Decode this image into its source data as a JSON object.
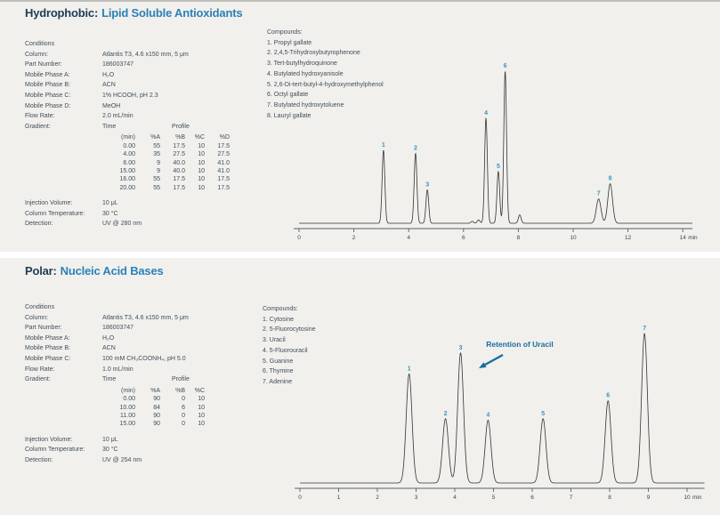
{
  "page": {
    "background": "#f1f0ed",
    "accent_navy": "#1e3c55",
    "accent_blue": "#2b81b8",
    "peak_label_color": "#3995c0",
    "annotation_color": "#176d9e"
  },
  "sections": [
    {
      "title_prefix": "Hydrophobic:",
      "title_main": "Lipid Soluble Antioxidants",
      "conditions_header": "Conditions",
      "conditions": [
        {
          "label": "Column:",
          "value": "Atlantis T3, 4.6 x150 mm, 5 μm"
        },
        {
          "label": "Part Number:",
          "value": "186003747"
        },
        {
          "label": "Mobile Phase A:",
          "value": "H₂O"
        },
        {
          "label": "Mobile Phase B:",
          "value": "ACN"
        },
        {
          "label": "Mobile Phase C:",
          "value": "1% HCOOH, pH 2.3"
        },
        {
          "label": "Mobile Phase D:",
          "value": "MeOH"
        },
        {
          "label": "Flow Rate:",
          "value": "2.0 mL/min"
        }
      ],
      "gradient_label": "Gradient:",
      "time_header": "Time",
      "profile_header": "Profile",
      "gradient_columns": [
        "(min)",
        "%A",
        "%B",
        "%C",
        "%D"
      ],
      "gradient_rows": [
        [
          "0.00",
          "55",
          "17.5",
          "10",
          "17.5"
        ],
        [
          "4.00",
          "35",
          "27.5",
          "10",
          "27.5"
        ],
        [
          "6.00",
          "9",
          "40.0",
          "10",
          "41.0"
        ],
        [
          "15.00",
          "9",
          "40.0",
          "10",
          "41.0"
        ],
        [
          "16.00",
          "55",
          "17.5",
          "10",
          "17.5"
        ],
        [
          "20.00",
          "55",
          "17.5",
          "10",
          "17.5"
        ]
      ],
      "post_conditions": [
        {
          "label": "Injection Volume:",
          "value": "10 μL"
        },
        {
          "label": "Column Temperature:",
          "value": "30 °C"
        },
        {
          "label": "Detection:",
          "value": "UV @ 280 nm"
        }
      ],
      "compounds_header": "Compounds:",
      "compounds": [
        "1. Propyl gallate",
        "2. 2,4,5-Trihydroxybutyrophenone",
        "3. Tert-butylhydroquinone",
        "4. Butylated hydroxyanisole",
        "5. 2,6-Di-tert-butyl-4-hydroxymethylphenol",
        "6. Octyl gallate",
        "7. Butylated hydroxytoluene",
        "8. Lauryl gallate"
      ]
    },
    {
      "title_prefix": "Polar:",
      "title_main": "Nucleic Acid Bases",
      "conditions_header": "Conditions",
      "conditions": [
        {
          "label": "Column:",
          "value": "Atlantis T3, 4.6 x150 mm, 5 μm"
        },
        {
          "label": "Part Number:",
          "value": "186003747"
        },
        {
          "label": "Mobile Phase A:",
          "value": "H₂O"
        },
        {
          "label": "Mobile Phase B:",
          "value": "ACN"
        },
        {
          "label": "Mobile Phase C:",
          "value": "100 mM CH₃COONH₄, pH 5.0"
        },
        {
          "label": "Flow Rate:",
          "value": "1.0 mL/min"
        }
      ],
      "gradient_label": "Gradient:",
      "time_header": "Time",
      "profile_header": "Profile",
      "gradient_columns": [
        "(min)",
        "%A",
        "%B",
        "%C"
      ],
      "gradient_rows": [
        [
          "0.00",
          "90",
          "0",
          "10"
        ],
        [
          "10.00",
          "84",
          "6",
          "10"
        ],
        [
          "11.00",
          "90",
          "0",
          "10"
        ],
        [
          "15.00",
          "90",
          "0",
          "10"
        ]
      ],
      "post_conditions": [
        {
          "label": "Injection Volume:",
          "value": "10 μL"
        },
        {
          "label": "Column Temperature:",
          "value": "30 °C"
        },
        {
          "label": "Detection:",
          "value": "UV @ 254 nm"
        }
      ],
      "compounds_header": "Compounds:",
      "compounds": [
        "1. Cytosine",
        "2. 5-Fluorocytosine",
        "3. Uracil",
        "4. 5-Fluorouracil",
        "5. Guanine",
        "6. Thymine",
        "7. Adenine"
      ]
    }
  ],
  "chart_data": [
    {
      "type": "line",
      "title": "Chromatogram — Hydrophobic: Lipid Soluble Antioxidants",
      "xlabel": "min",
      "xlim": [
        0,
        14.35
      ],
      "x_ticks": [
        0,
        2,
        4,
        6,
        8,
        10,
        12,
        14
      ],
      "y_axis": "unlabeled intensity, peak heights relative to tallest peak",
      "sigma": 0.05,
      "peaks": [
        {
          "label": "1",
          "t": 3.08,
          "h": 0.48
        },
        {
          "label": "2",
          "t": 4.25,
          "h": 0.46
        },
        {
          "label": "3",
          "t": 4.68,
          "h": 0.22
        },
        {
          "label": "4",
          "t": 6.82,
          "h": 0.69
        },
        {
          "label": "5",
          "t": 7.27,
          "h": 0.34
        },
        {
          "label": "6",
          "t": 7.52,
          "h": 1.0
        },
        {
          "label": "7",
          "t": 10.93,
          "h": 0.16,
          "s": 0.085
        },
        {
          "label": "8",
          "t": 11.35,
          "h": 0.26,
          "s": 0.085
        }
      ],
      "minor_features": [
        {
          "t": 6.32,
          "h": 0.012
        },
        {
          "t": 6.55,
          "h": 0.022
        },
        {
          "t": 8.05,
          "h": 0.055
        }
      ]
    },
    {
      "type": "line",
      "title": "Chromatogram — Polar: Nucleic Acid Bases",
      "xlabel": "min",
      "xlim": [
        0,
        10.45
      ],
      "x_ticks": [
        0,
        1,
        2,
        3,
        4,
        5,
        6,
        7,
        8,
        9,
        10
      ],
      "y_axis": "unlabeled intensity, peak heights relative to tallest peak",
      "sigma": 0.075,
      "peaks": [
        {
          "label": "1",
          "t": 2.82,
          "h": 0.73
        },
        {
          "label": "2",
          "t": 3.76,
          "h": 0.43
        },
        {
          "label": "3",
          "t": 4.15,
          "h": 0.87
        },
        {
          "label": "4",
          "t": 4.86,
          "h": 0.42
        },
        {
          "label": "5",
          "t": 6.28,
          "h": 0.43
        },
        {
          "label": "6",
          "t": 7.96,
          "h": 0.55
        },
        {
          "label": "7",
          "t": 8.9,
          "h": 1.0
        }
      ],
      "minor_features": [],
      "annotation": {
        "text": "Retention of Uracil",
        "points_to_peak": "3"
      }
    }
  ]
}
